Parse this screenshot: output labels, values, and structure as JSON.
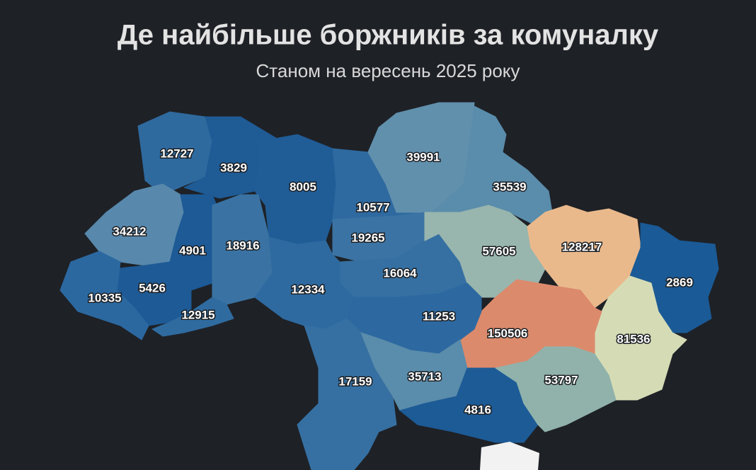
{
  "chart_data": {
    "type": "choropleth",
    "title": "Де найбільше боржників за комуналку",
    "subtitle": "Станом на вересень 2025 року",
    "regions": [
      {
        "value": 12727,
        "color": "#2f6a9f"
      },
      {
        "value": 3829,
        "color": "#1f5b95"
      },
      {
        "value": 8005,
        "color": "#205c96"
      },
      {
        "value": 10577,
        "color": "#2e6aa0"
      },
      {
        "value": 39991,
        "color": "#6190ad"
      },
      {
        "value": 35539,
        "color": "#5a8cab"
      },
      {
        "value": 34212,
        "color": "#5888ac"
      },
      {
        "value": 4901,
        "color": "#1d5a96"
      },
      {
        "value": 18916,
        "color": "#3a73a3"
      },
      {
        "value": 19265,
        "color": "#3b74a4"
      },
      {
        "value": 16064,
        "color": "#3670a2"
      },
      {
        "value": 57605,
        "color": "#98b5ae"
      },
      {
        "value": 128217,
        "color": "#e9b98c"
      },
      {
        "value": 2869,
        "color": "#1a5a96"
      },
      {
        "value": 81536,
        "color": "#d5dcb5"
      },
      {
        "value": 150506,
        "color": "#dc8a6c"
      },
      {
        "value": 5426,
        "color": "#1e5a95"
      },
      {
        "value": 10335,
        "color": "#2c68a0"
      },
      {
        "value": 12915,
        "color": "#2f6b9f"
      },
      {
        "value": 12334,
        "color": "#2e6aa0"
      },
      {
        "value": 11253,
        "color": "#2d69a0"
      },
      {
        "value": 17159,
        "color": "#3670a2"
      },
      {
        "value": 35713,
        "color": "#5a8cab"
      },
      {
        "value": 4816,
        "color": "#1d5b96"
      },
      {
        "value": 53797,
        "color": "#90b2ab"
      }
    ]
  }
}
